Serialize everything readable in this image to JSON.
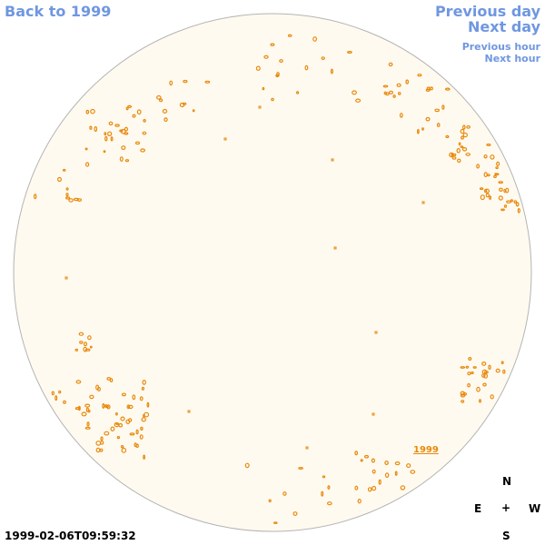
{
  "nav": {
    "back": "Back to 1999",
    "previous_day": "Previous day",
    "next_day": "Next day",
    "previous_hour": "Previous hour",
    "next_hour": "Next hour"
  },
  "compass": {
    "north": "N",
    "east": "E",
    "center": "+",
    "west": "W",
    "south": "S"
  },
  "timestamp": "1999-02-06T09:59:32",
  "region_label": "1999",
  "colors": {
    "link": "#6f97e1",
    "disk_fill": "#fffaf0",
    "disk_stroke": "#b4b4b4",
    "feature": "#e8890b"
  }
}
